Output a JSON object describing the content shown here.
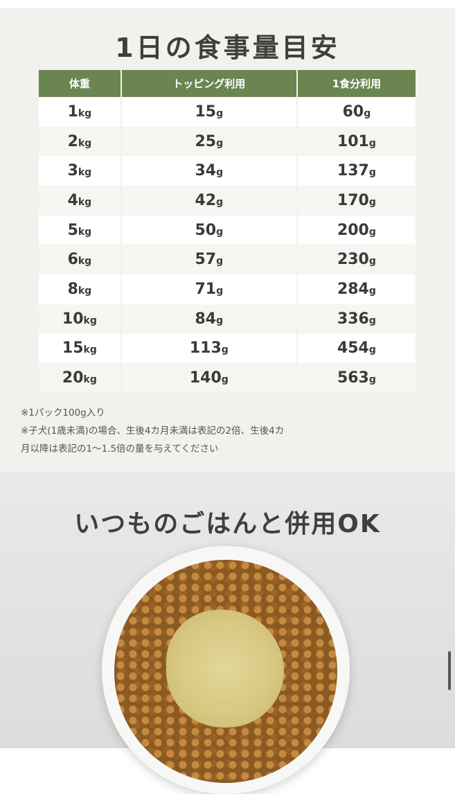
{
  "title": "1日の食事量目安",
  "table": {
    "headers": [
      "体重",
      "トッピング利用",
      "1食分利用"
    ],
    "rows": [
      {
        "weight": "1",
        "topping": "15",
        "full": "60"
      },
      {
        "weight": "2",
        "topping": "25",
        "full": "101"
      },
      {
        "weight": "3",
        "topping": "34",
        "full": "137"
      },
      {
        "weight": "4",
        "topping": "42",
        "full": "170"
      },
      {
        "weight": "5",
        "topping": "50",
        "full": "200"
      },
      {
        "weight": "6",
        "topping": "57",
        "full": "230"
      },
      {
        "weight": "8",
        "topping": "71",
        "full": "284"
      },
      {
        "weight": "10",
        "topping": "84",
        "full": "336"
      },
      {
        "weight": "15",
        "topping": "113",
        "full": "454"
      },
      {
        "weight": "20",
        "topping": "140",
        "full": "563"
      }
    ],
    "unit_kg": "kg",
    "unit_g": "g"
  },
  "notes": [
    "※1パック100g入り",
    "※子犬(1歳未満)の場合、生後4カ月未満は表記の2倍、生後4カ",
    "月以降は表記の1〜1.5倍の量を与えてください"
  ],
  "section2_title": "いつものごはんと併用OK",
  "colors": {
    "header": "#6b8550",
    "background": "#f2f1ed"
  }
}
